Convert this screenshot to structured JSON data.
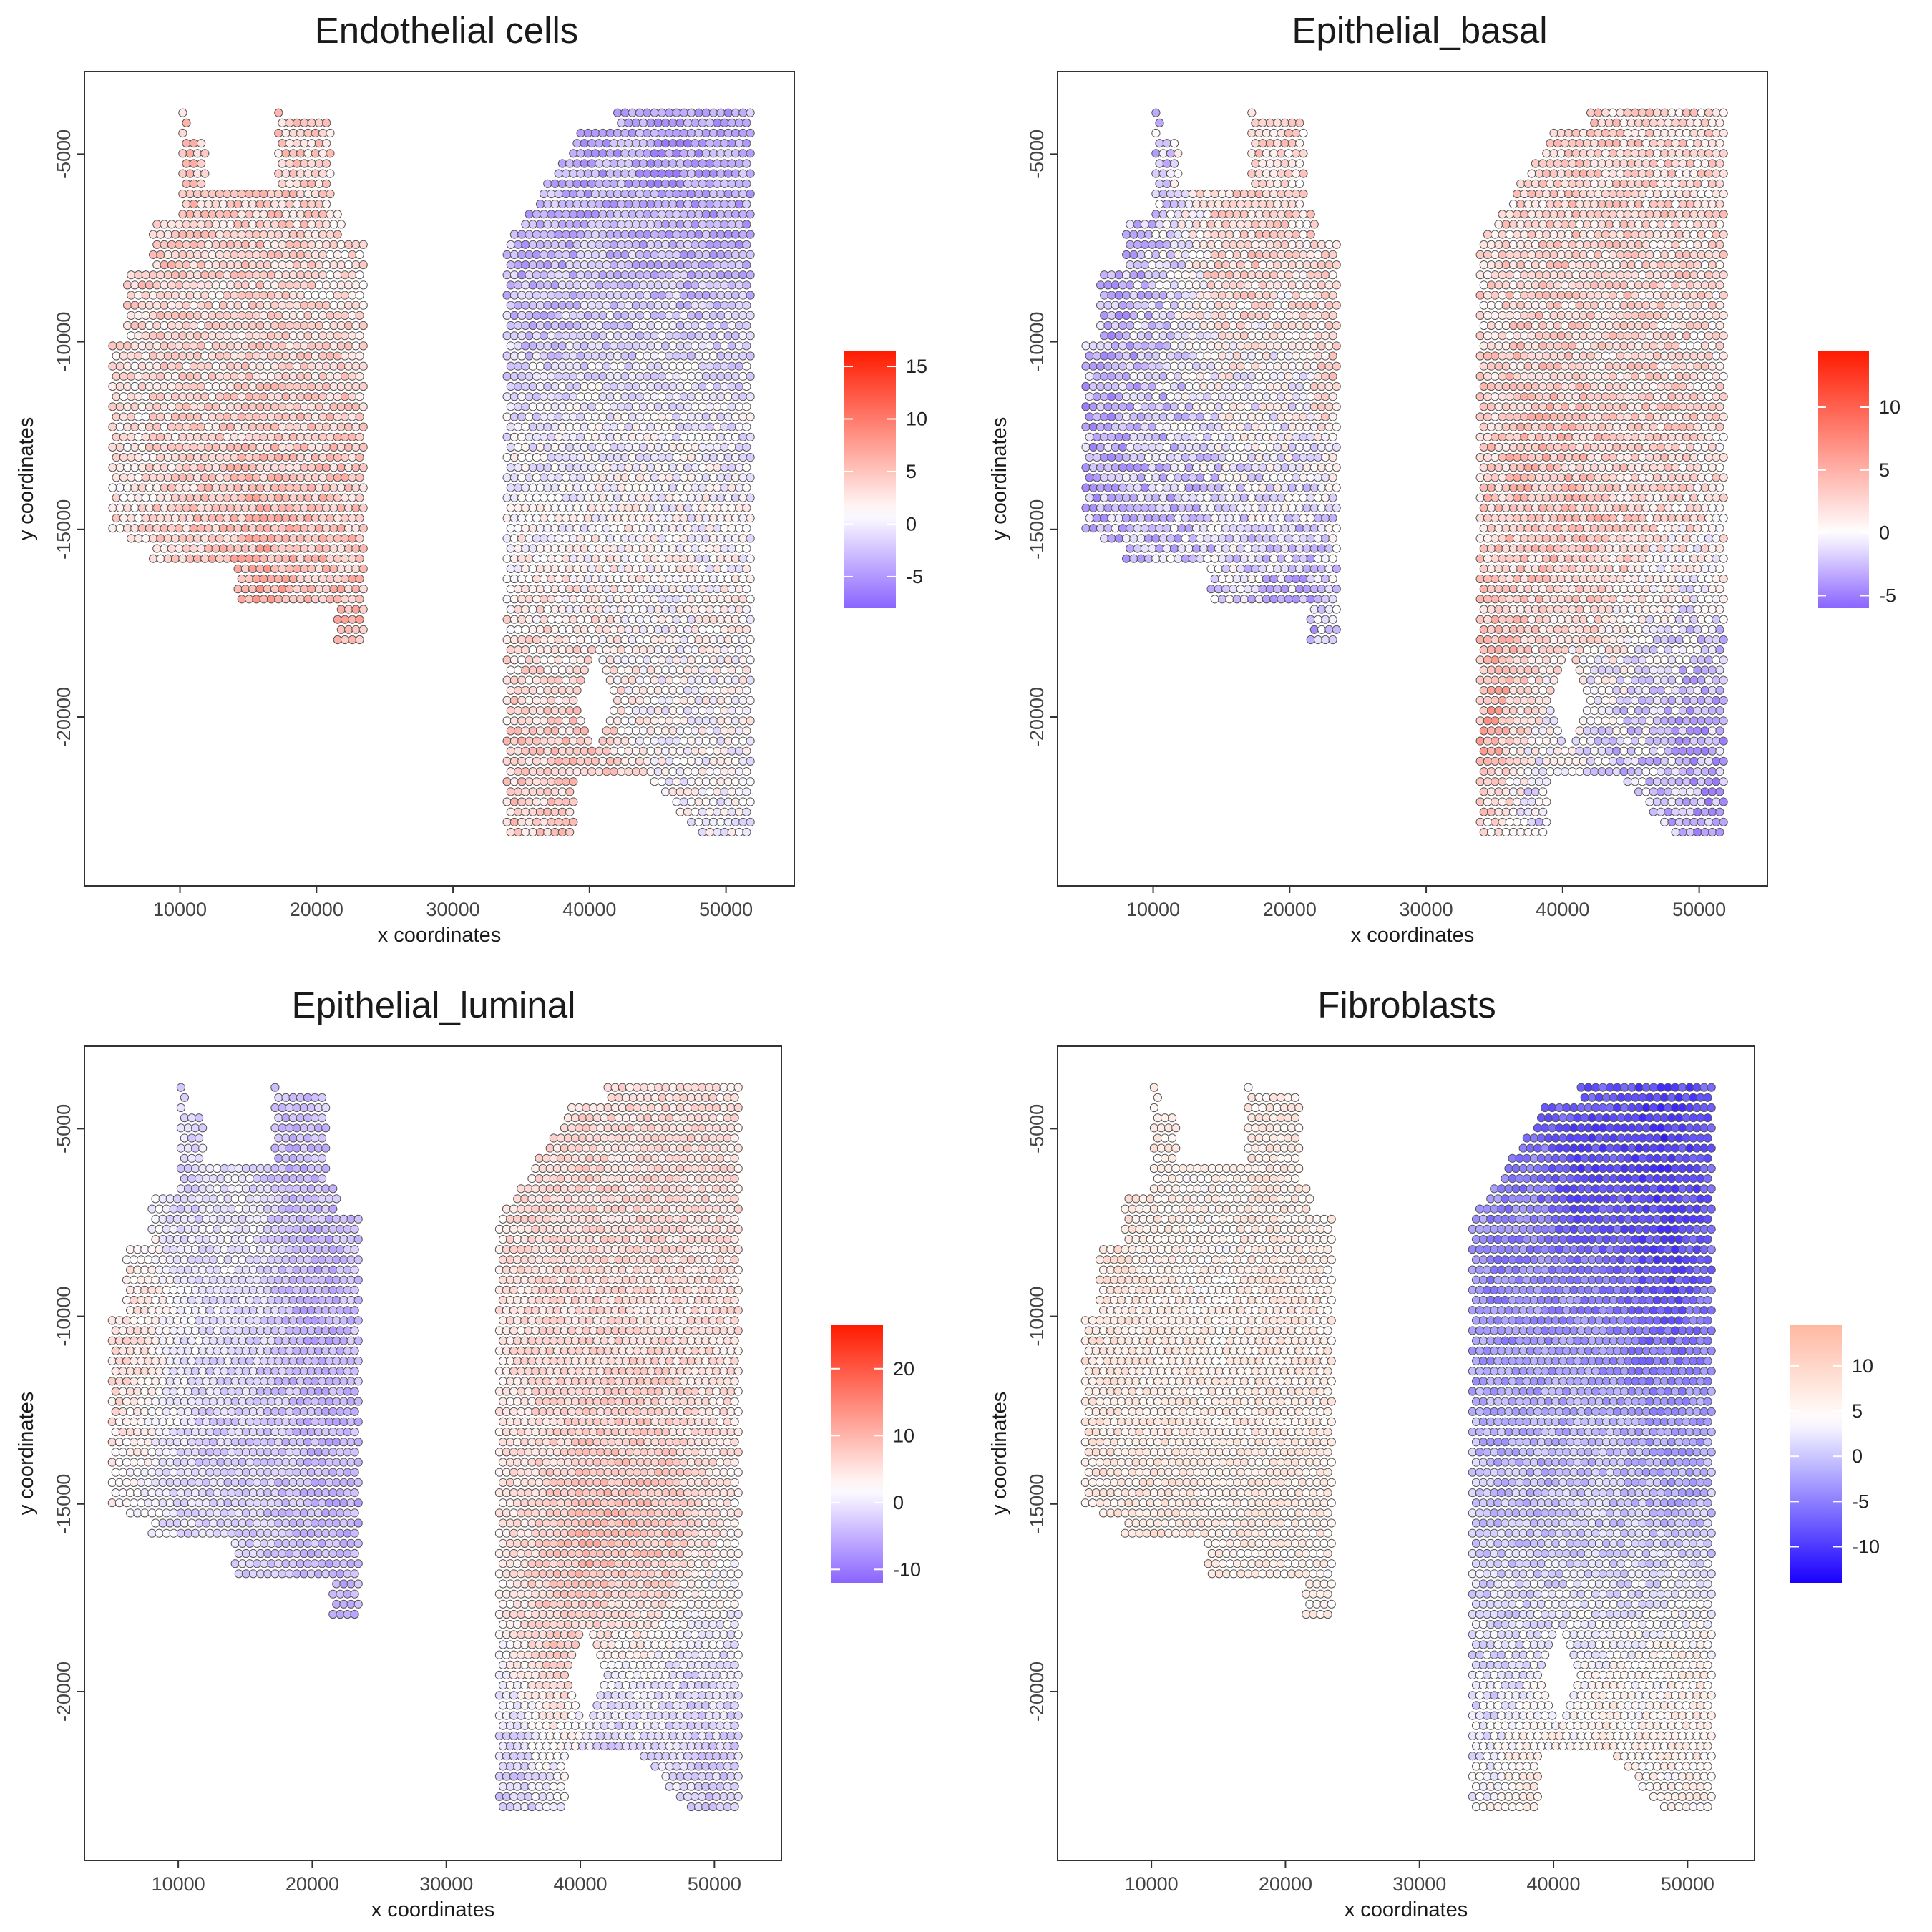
{
  "chart_data": [
    {
      "type": "scatter",
      "title": "Endothelial cells",
      "xlabel": "x coordinates",
      "ylabel": "y coordinates",
      "xlim": [
        3000,
        55000
      ],
      "ylim": [
        -24500,
        -2800
      ],
      "xticks": [
        10000,
        20000,
        30000,
        40000,
        50000
      ],
      "yticks": [
        -5000,
        -10000,
        -15000,
        -20000
      ],
      "grid": false,
      "legend": {
        "position": "right",
        "kind": "colorbar",
        "range": [
          -8,
          16.5
        ],
        "ticks": [
          15,
          10,
          5,
          0,
          -5
        ]
      },
      "colors": {
        "low": "#8a64ff",
        "mid": "#ffffff",
        "high": "#ff1a00"
      },
      "color_scale": {
        "low": -8,
        "mid": 1,
        "high": 16.5
      },
      "points": [
        [
          6000,
          -12000,
          1.5
        ],
        [
          8000,
          -8000,
          4.5
        ],
        [
          10000,
          -6000,
          6
        ],
        [
          12000,
          -10000,
          2
        ],
        [
          14000,
          -15000,
          5
        ],
        [
          16000,
          -16500,
          8
        ],
        [
          18000,
          -6000,
          5
        ],
        [
          20000,
          -9000,
          2
        ],
        [
          22000,
          -12000,
          5
        ],
        [
          23000,
          -17500,
          6
        ],
        [
          36000,
          -8000,
          -5
        ],
        [
          40000,
          -5000,
          -5.5
        ],
        [
          46000,
          -5000,
          -6
        ],
        [
          50000,
          -6000,
          -5
        ],
        [
          38000,
          -13000,
          0
        ],
        [
          42000,
          -16000,
          2
        ],
        [
          48000,
          -14000,
          1
        ],
        [
          36000,
          -21000,
          5
        ],
        [
          40000,
          -21000,
          6
        ],
        [
          46000,
          -20000,
          0
        ],
        [
          50000,
          -18000,
          2
        ],
        [
          51000,
          -23000,
          0
        ]
      ]
    },
    {
      "type": "scatter",
      "title": "Epithelial_basal",
      "xlabel": "x coordinates",
      "ylabel": "y coordinates",
      "xlim": [
        3000,
        55000
      ],
      "ylim": [
        -24500,
        -2800
      ],
      "xticks": [
        10000,
        20000,
        30000,
        40000,
        50000
      ],
      "yticks": [
        -5000,
        -10000,
        -15000,
        -20000
      ],
      "grid": false,
      "legend": {
        "position": "right",
        "kind": "colorbar",
        "range": [
          -6,
          14.5
        ],
        "ticks": [
          10,
          5,
          0,
          -5
        ]
      },
      "colors": {
        "low": "#8a64ff",
        "mid": "#ffffff",
        "high": "#ff1a00"
      },
      "color_scale": {
        "low": -6,
        "mid": 0,
        "high": 14.5
      },
      "points": [
        [
          6000,
          -12000,
          -4
        ],
        [
          8000,
          -6000,
          -4
        ],
        [
          10000,
          -9000,
          -3
        ],
        [
          12000,
          -14000,
          -3
        ],
        [
          15000,
          -8000,
          4
        ],
        [
          18000,
          -7000,
          5
        ],
        [
          20000,
          -11000,
          -2
        ],
        [
          22000,
          -14000,
          -3
        ],
        [
          23000,
          -11000,
          6
        ],
        [
          21000,
          -17000,
          -4
        ],
        [
          36000,
          -8000,
          2
        ],
        [
          40000,
          -5000,
          3
        ],
        [
          46000,
          -5000,
          3
        ],
        [
          50000,
          -7000,
          2
        ],
        [
          38000,
          -13000,
          5
        ],
        [
          42000,
          -15000,
          5
        ],
        [
          48000,
          -13000,
          3
        ],
        [
          35000,
          -20000,
          8
        ],
        [
          38000,
          -22000,
          -3
        ],
        [
          44000,
          -21000,
          -3
        ],
        [
          50000,
          -20000,
          -4
        ],
        [
          51000,
          -23000,
          -4
        ]
      ]
    },
    {
      "type": "scatter",
      "title": "Epithelial_luminal",
      "xlabel": "x coordinates",
      "ylabel": "y coordinates",
      "xlim": [
        3000,
        55000
      ],
      "ylim": [
        -24500,
        -2800
      ],
      "xticks": [
        10000,
        20000,
        30000,
        40000,
        50000
      ],
      "yticks": [
        -5000,
        -10000,
        -15000,
        -20000
      ],
      "grid": false,
      "legend": {
        "position": "right",
        "kind": "colorbar",
        "range": [
          -12,
          26.5
        ],
        "ticks": [
          20,
          10,
          0,
          -10
        ]
      },
      "colors": {
        "low": "#8a64ff",
        "mid": "#ffffff",
        "high": "#ff1a00"
      },
      "color_scale": {
        "low": -12,
        "mid": 2,
        "high": 26.5
      },
      "points": [
        [
          6000,
          -11000,
          8
        ],
        [
          8000,
          -9000,
          6
        ],
        [
          10000,
          -7000,
          -5
        ],
        [
          12000,
          -13000,
          -4
        ],
        [
          15000,
          -8000,
          4
        ],
        [
          18000,
          -6000,
          -7
        ],
        [
          20000,
          -10000,
          -8
        ],
        [
          22000,
          -14000,
          -6
        ],
        [
          23000,
          -17500,
          -6
        ],
        [
          36000,
          -8000,
          6
        ],
        [
          40000,
          -5000,
          7
        ],
        [
          46000,
          -6000,
          6
        ],
        [
          50000,
          -9000,
          5
        ],
        [
          38000,
          -13000,
          6
        ],
        [
          41000,
          -16000,
          15
        ],
        [
          46000,
          -16000,
          12
        ],
        [
          38000,
          -19000,
          12
        ],
        [
          35000,
          -22000,
          -6
        ],
        [
          42000,
          -21000,
          -7
        ],
        [
          48000,
          -20000,
          -5
        ],
        [
          51000,
          -23000,
          -4
        ]
      ]
    },
    {
      "type": "scatter",
      "title": "Fibroblasts",
      "xlabel": "x coordinates",
      "ylabel": "y coordinates",
      "xlim": [
        3000,
        55000
      ],
      "ylim": [
        -24500,
        -2800
      ],
      "xticks": [
        10000,
        20000,
        30000,
        40000,
        50000
      ],
      "yticks": [
        -5000,
        -10000,
        -15000,
        -20000
      ],
      "grid": false,
      "legend": {
        "position": "right",
        "kind": "colorbar",
        "range": [
          -14,
          14.5
        ],
        "ticks": [
          10,
          5,
          0,
          -5,
          -10
        ]
      },
      "colors": {
        "low": "#1a00ff",
        "mid": "#ffffff",
        "high": "#ffb8a0"
      },
      "color_scale": {
        "low": -14,
        "mid": 4,
        "high": 14.5
      },
      "points": [
        [
          6000,
          -12000,
          8
        ],
        [
          8000,
          -7000,
          9
        ],
        [
          10000,
          -9000,
          6
        ],
        [
          12000,
          -14000,
          8
        ],
        [
          15000,
          -8000,
          3
        ],
        [
          18000,
          -7000,
          9
        ],
        [
          20000,
          -11000,
          8
        ],
        [
          22000,
          -14000,
          7
        ],
        [
          23000,
          -17500,
          6
        ],
        [
          36000,
          -9000,
          -6
        ],
        [
          42000,
          -6000,
          -11
        ],
        [
          48000,
          -5000,
          -12
        ],
        [
          48000,
          -9000,
          -12
        ],
        [
          38000,
          -13000,
          -2
        ],
        [
          44000,
          -15000,
          1
        ],
        [
          49000,
          -13000,
          -3
        ],
        [
          36000,
          -20000,
          0
        ],
        [
          38000,
          -22000,
          9
        ],
        [
          44000,
          -21000,
          8
        ],
        [
          50000,
          -20000,
          8
        ],
        [
          51000,
          -23000,
          6
        ]
      ]
    }
  ]
}
